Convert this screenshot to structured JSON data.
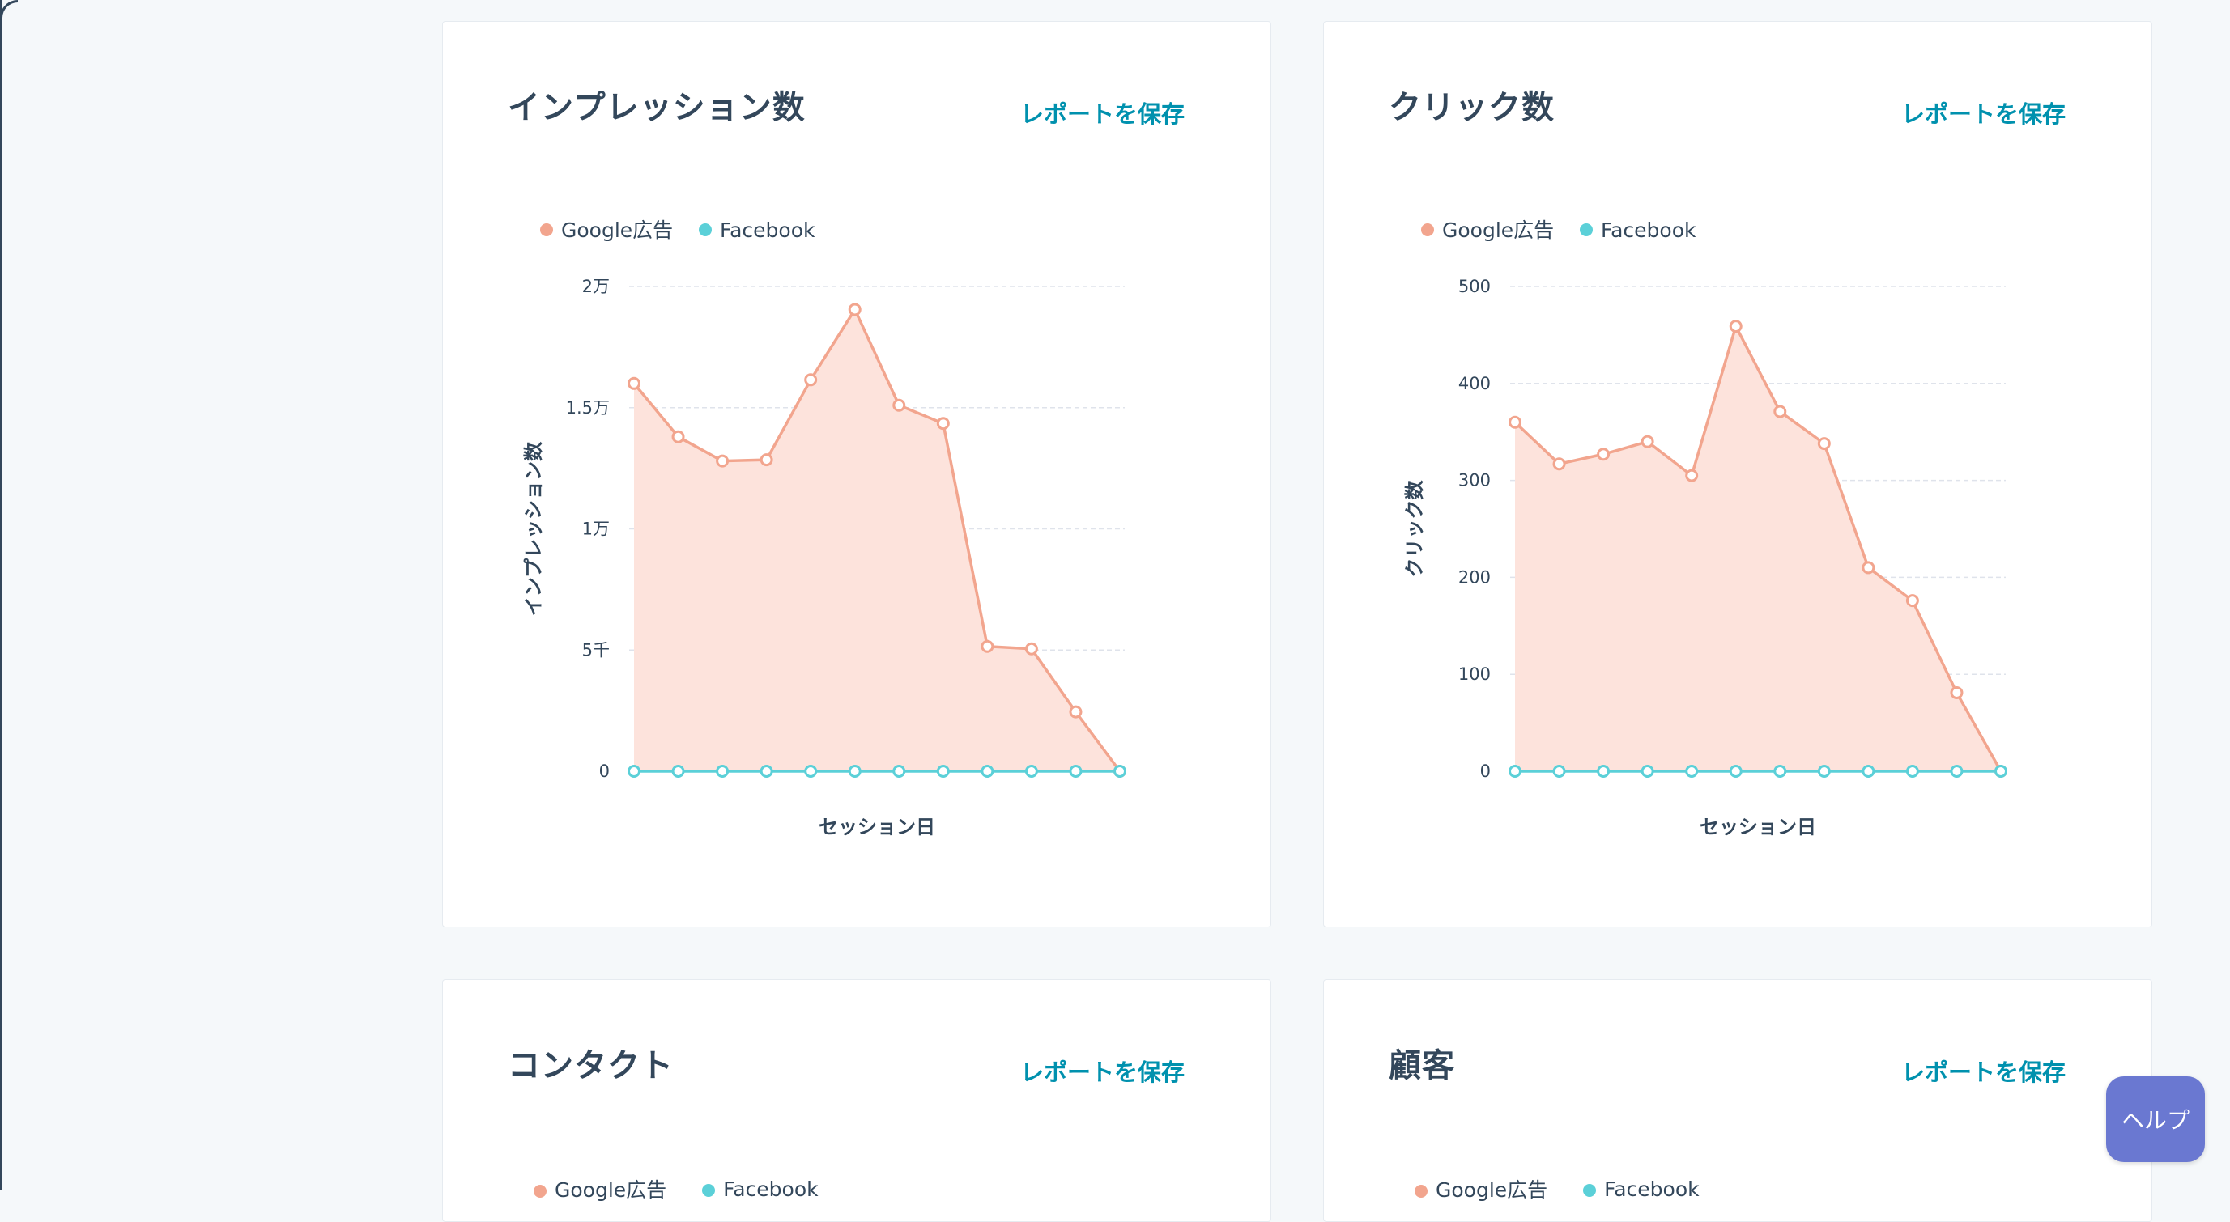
{
  "colors": {
    "google": "#f2a58e",
    "google_fill": "#fde3dc",
    "facebook": "#5bd0d8",
    "link": "#0091ae",
    "help_bg": "#6a78d1"
  },
  "save_label": "レポートを保存",
  "help_label": "ヘルプ",
  "cards": [
    {
      "title": "インプレッション数",
      "save_label": "レポートを保存",
      "legend": [
        "Google広告",
        "Facebook"
      ]
    },
    {
      "title": "クリック数",
      "save_label": "レポートを保存",
      "legend": [
        "Google広告",
        "Facebook"
      ]
    },
    {
      "title": "コンタクト",
      "save_label": "レポートを保存",
      "legend": [
        "Google広告",
        "Facebook"
      ]
    },
    {
      "title": "顧客",
      "save_label": "レポートを保存",
      "legend": [
        "Google広告",
        "Facebook"
      ]
    }
  ],
  "chart_data": [
    {
      "type": "area",
      "title": "インプレッション数",
      "xlabel": "セッション日",
      "ylabel": "インプレッション数",
      "ylim": [
        0,
        20000
      ],
      "y_ticks": [
        0,
        5000,
        10000,
        15000,
        20000
      ],
      "y_tick_labels": [
        "0",
        "5千",
        "1万",
        "1.5万",
        "2万"
      ],
      "legend_position": "top-left",
      "grid": true,
      "series": [
        {
          "name": "Google広告",
          "values": [
            16000,
            13800,
            12800,
            12850,
            16150,
            19050,
            15100,
            14350,
            5150,
            5050,
            2450,
            0
          ]
        },
        {
          "name": "Facebook",
          "values": [
            0,
            0,
            0,
            0,
            0,
            0,
            0,
            0,
            0,
            0,
            0,
            0
          ]
        }
      ]
    },
    {
      "type": "area",
      "title": "クリック数",
      "xlabel": "セッション日",
      "ylabel": "クリック数",
      "ylim": [
        0,
        500
      ],
      "y_ticks": [
        0,
        100,
        200,
        300,
        400,
        500
      ],
      "y_tick_labels": [
        "0",
        "100",
        "200",
        "300",
        "400",
        "500"
      ],
      "legend_position": "top-left",
      "grid": true,
      "series": [
        {
          "name": "Google広告",
          "values": [
            360,
            317,
            327,
            340,
            305,
            459,
            371,
            338,
            210,
            176,
            81,
            0
          ]
        },
        {
          "name": "Facebook",
          "values": [
            0,
            0,
            0,
            0,
            0,
            0,
            0,
            0,
            0,
            0,
            0,
            0
          ]
        }
      ]
    }
  ]
}
